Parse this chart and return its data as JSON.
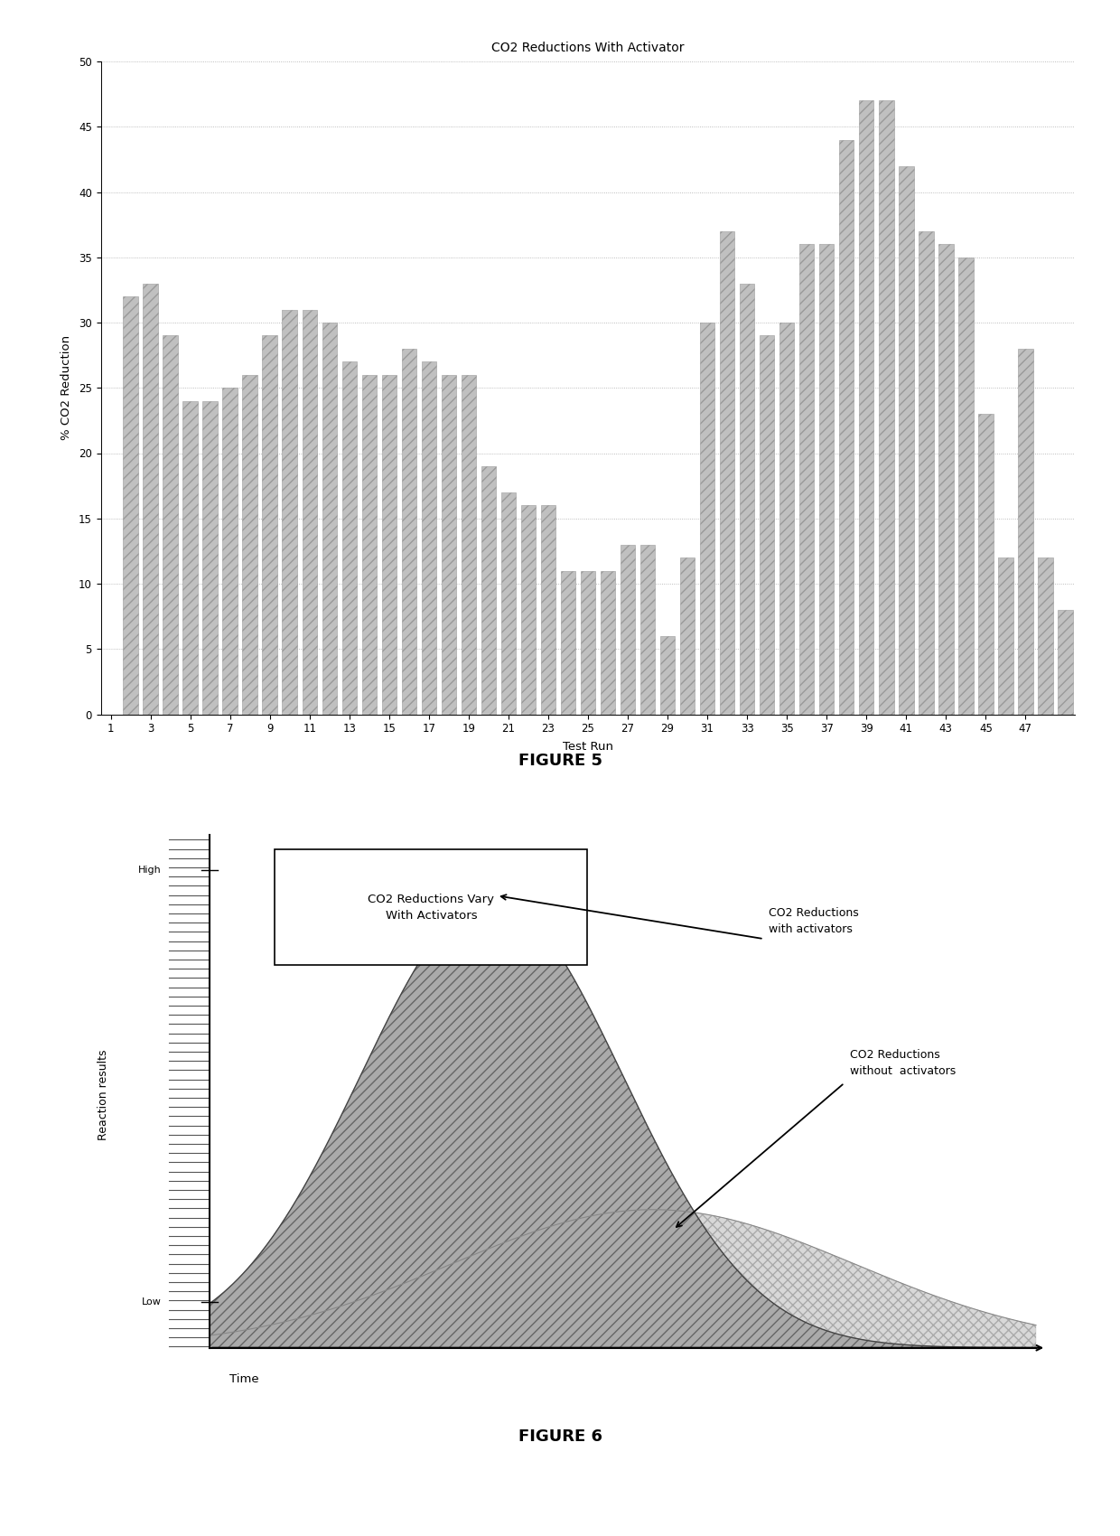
{
  "title1": "CO2 Reductions With Activator",
  "xlabel1": "Test Run",
  "ylabel1": "% CO2 Reduction",
  "ylim1": [
    0,
    50
  ],
  "yticks1": [
    0,
    5,
    10,
    15,
    20,
    25,
    30,
    35,
    40,
    45,
    50
  ],
  "xticks1": [
    1,
    3,
    5,
    7,
    9,
    11,
    13,
    15,
    17,
    19,
    21,
    23,
    25,
    27,
    29,
    31,
    33,
    35,
    37,
    39,
    41,
    43,
    45,
    47
  ],
  "bar_values": [
    32,
    33,
    29,
    24,
    24,
    25,
    26,
    29,
    31,
    31,
    30,
    27,
    26,
    26,
    28,
    27,
    26,
    26,
    19,
    17,
    16,
    16,
    11,
    11,
    11,
    13,
    13,
    6,
    12,
    30,
    37,
    33,
    29,
    30,
    36,
    36,
    44,
    47,
    47,
    42,
    37,
    36,
    35,
    23,
    12,
    28,
    12,
    8
  ],
  "bar_color": "#c0c0c0",
  "bar_edge_color": "#999999",
  "figure5_label": "FIGURE 5",
  "figure6_label": "FIGURE 6",
  "fig6_title": "CO2 Reductions Vary\nWith Activators",
  "fig6_ylabel": "Reaction results",
  "fig6_xlabel": "Time",
  "fig6_label_high": "High",
  "fig6_label_low": "Low",
  "fig6_annotation1": "CO2 Reductions\nwith activators",
  "fig6_annotation2": "CO2 Reductions\nwithout  activators",
  "bg_color": "#ffffff"
}
